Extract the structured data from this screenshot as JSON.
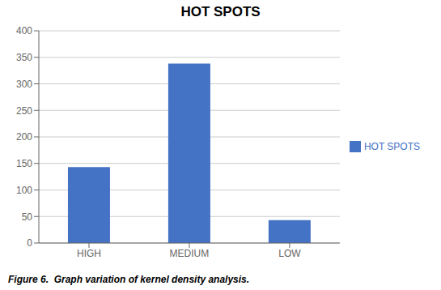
{
  "chart_data": {
    "type": "bar",
    "title": "HOT SPOTS",
    "caption": "Figure 6.  Graph variation of kernel density analysis.",
    "categories": [
      "HIGH",
      "MEDIUM",
      "LOW"
    ],
    "series": [
      {
        "name": "HOT SPOTS",
        "color": "#4472C4",
        "values": [
          143,
          338,
          43
        ]
      }
    ],
    "ylim": [
      0,
      400
    ],
    "yticks": [
      0,
      50,
      100,
      150,
      200,
      250,
      300,
      350,
      400
    ],
    "grid": true,
    "legend": "right"
  }
}
